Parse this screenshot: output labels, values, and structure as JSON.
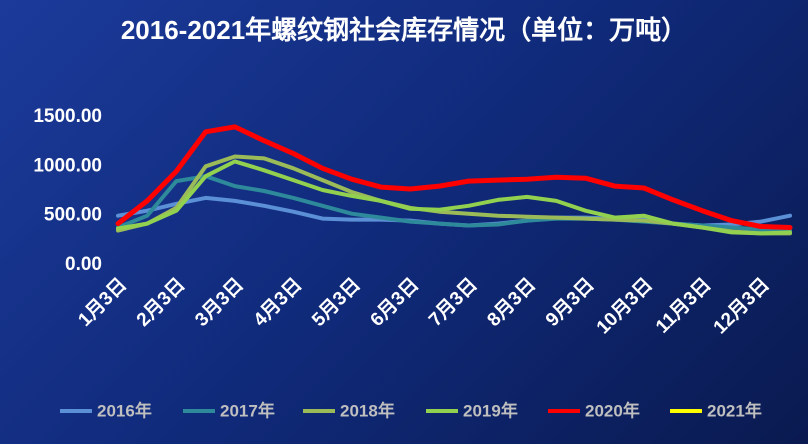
{
  "chart_data": {
    "type": "line",
    "title": "2016-2021年螺纹钢社会库存情况（单位：万吨）",
    "categories": [
      "1月3日",
      null,
      "2月3日",
      null,
      "3月3日",
      null,
      "4月3日",
      null,
      "5月3日",
      null,
      "6月3日",
      null,
      "7月3日",
      null,
      "8月3日",
      null,
      "9月3日",
      null,
      "10月3日",
      null,
      "11月3日",
      null,
      "12月3日",
      null
    ],
    "series": [
      {
        "name": "2016年",
        "color": "#5b8fd6",
        "values": [
          500,
          550,
          620,
          680,
          650,
          600,
          540,
          470,
          460,
          460,
          450,
          420,
          400,
          420,
          450,
          480,
          480,
          470,
          460,
          420,
          400,
          410,
          440,
          500
        ]
      },
      {
        "name": "2017年",
        "color": "#2e8a9a",
        "values": [
          380,
          500,
          850,
          900,
          800,
          750,
          680,
          600,
          520,
          480,
          440,
          420,
          400,
          410,
          450,
          470,
          470,
          460,
          440,
          420,
          400,
          380,
          360,
          350
        ]
      },
      {
        "name": "2018年",
        "color": "#9bbb59",
        "values": [
          350,
          420,
          580,
          1000,
          1100,
          1080,
          980,
          860,
          740,
          650,
          580,
          540,
          520,
          500,
          490,
          480,
          470,
          460,
          450,
          420,
          380,
          340,
          320,
          320
        ]
      },
      {
        "name": "2019年",
        "color": "#92d050",
        "values": [
          370,
          420,
          550,
          900,
          1050,
          960,
          860,
          760,
          700,
          650,
          570,
          560,
          600,
          660,
          690,
          650,
          550,
          480,
          500,
          420,
          380,
          330,
          320,
          330
        ]
      },
      {
        "name": "2020年",
        "color": "#ff0000",
        "values": [
          420,
          650,
          950,
          1350,
          1400,
          1260,
          1130,
          980,
          870,
          790,
          770,
          800,
          850,
          860,
          870,
          890,
          880,
          800,
          780,
          660,
          550,
          450,
          390,
          380
        ]
      },
      {
        "name": "2021年",
        "color": "#ffff00",
        "values": [
          null,
          null,
          null,
          null,
          null,
          null,
          null,
          null,
          null,
          null,
          null,
          null,
          null,
          null,
          null,
          null,
          null,
          null,
          null,
          null,
          null,
          null,
          null,
          null
        ]
      }
    ],
    "ylim": [
      0,
      1500
    ],
    "yticks": [
      {
        "value": 0,
        "label": "0.00"
      },
      {
        "value": 500,
        "label": "500.00"
      },
      {
        "value": 1000,
        "label": "1000.00"
      },
      {
        "value": 1500,
        "label": "1500.00"
      }
    ],
    "grid": false
  }
}
